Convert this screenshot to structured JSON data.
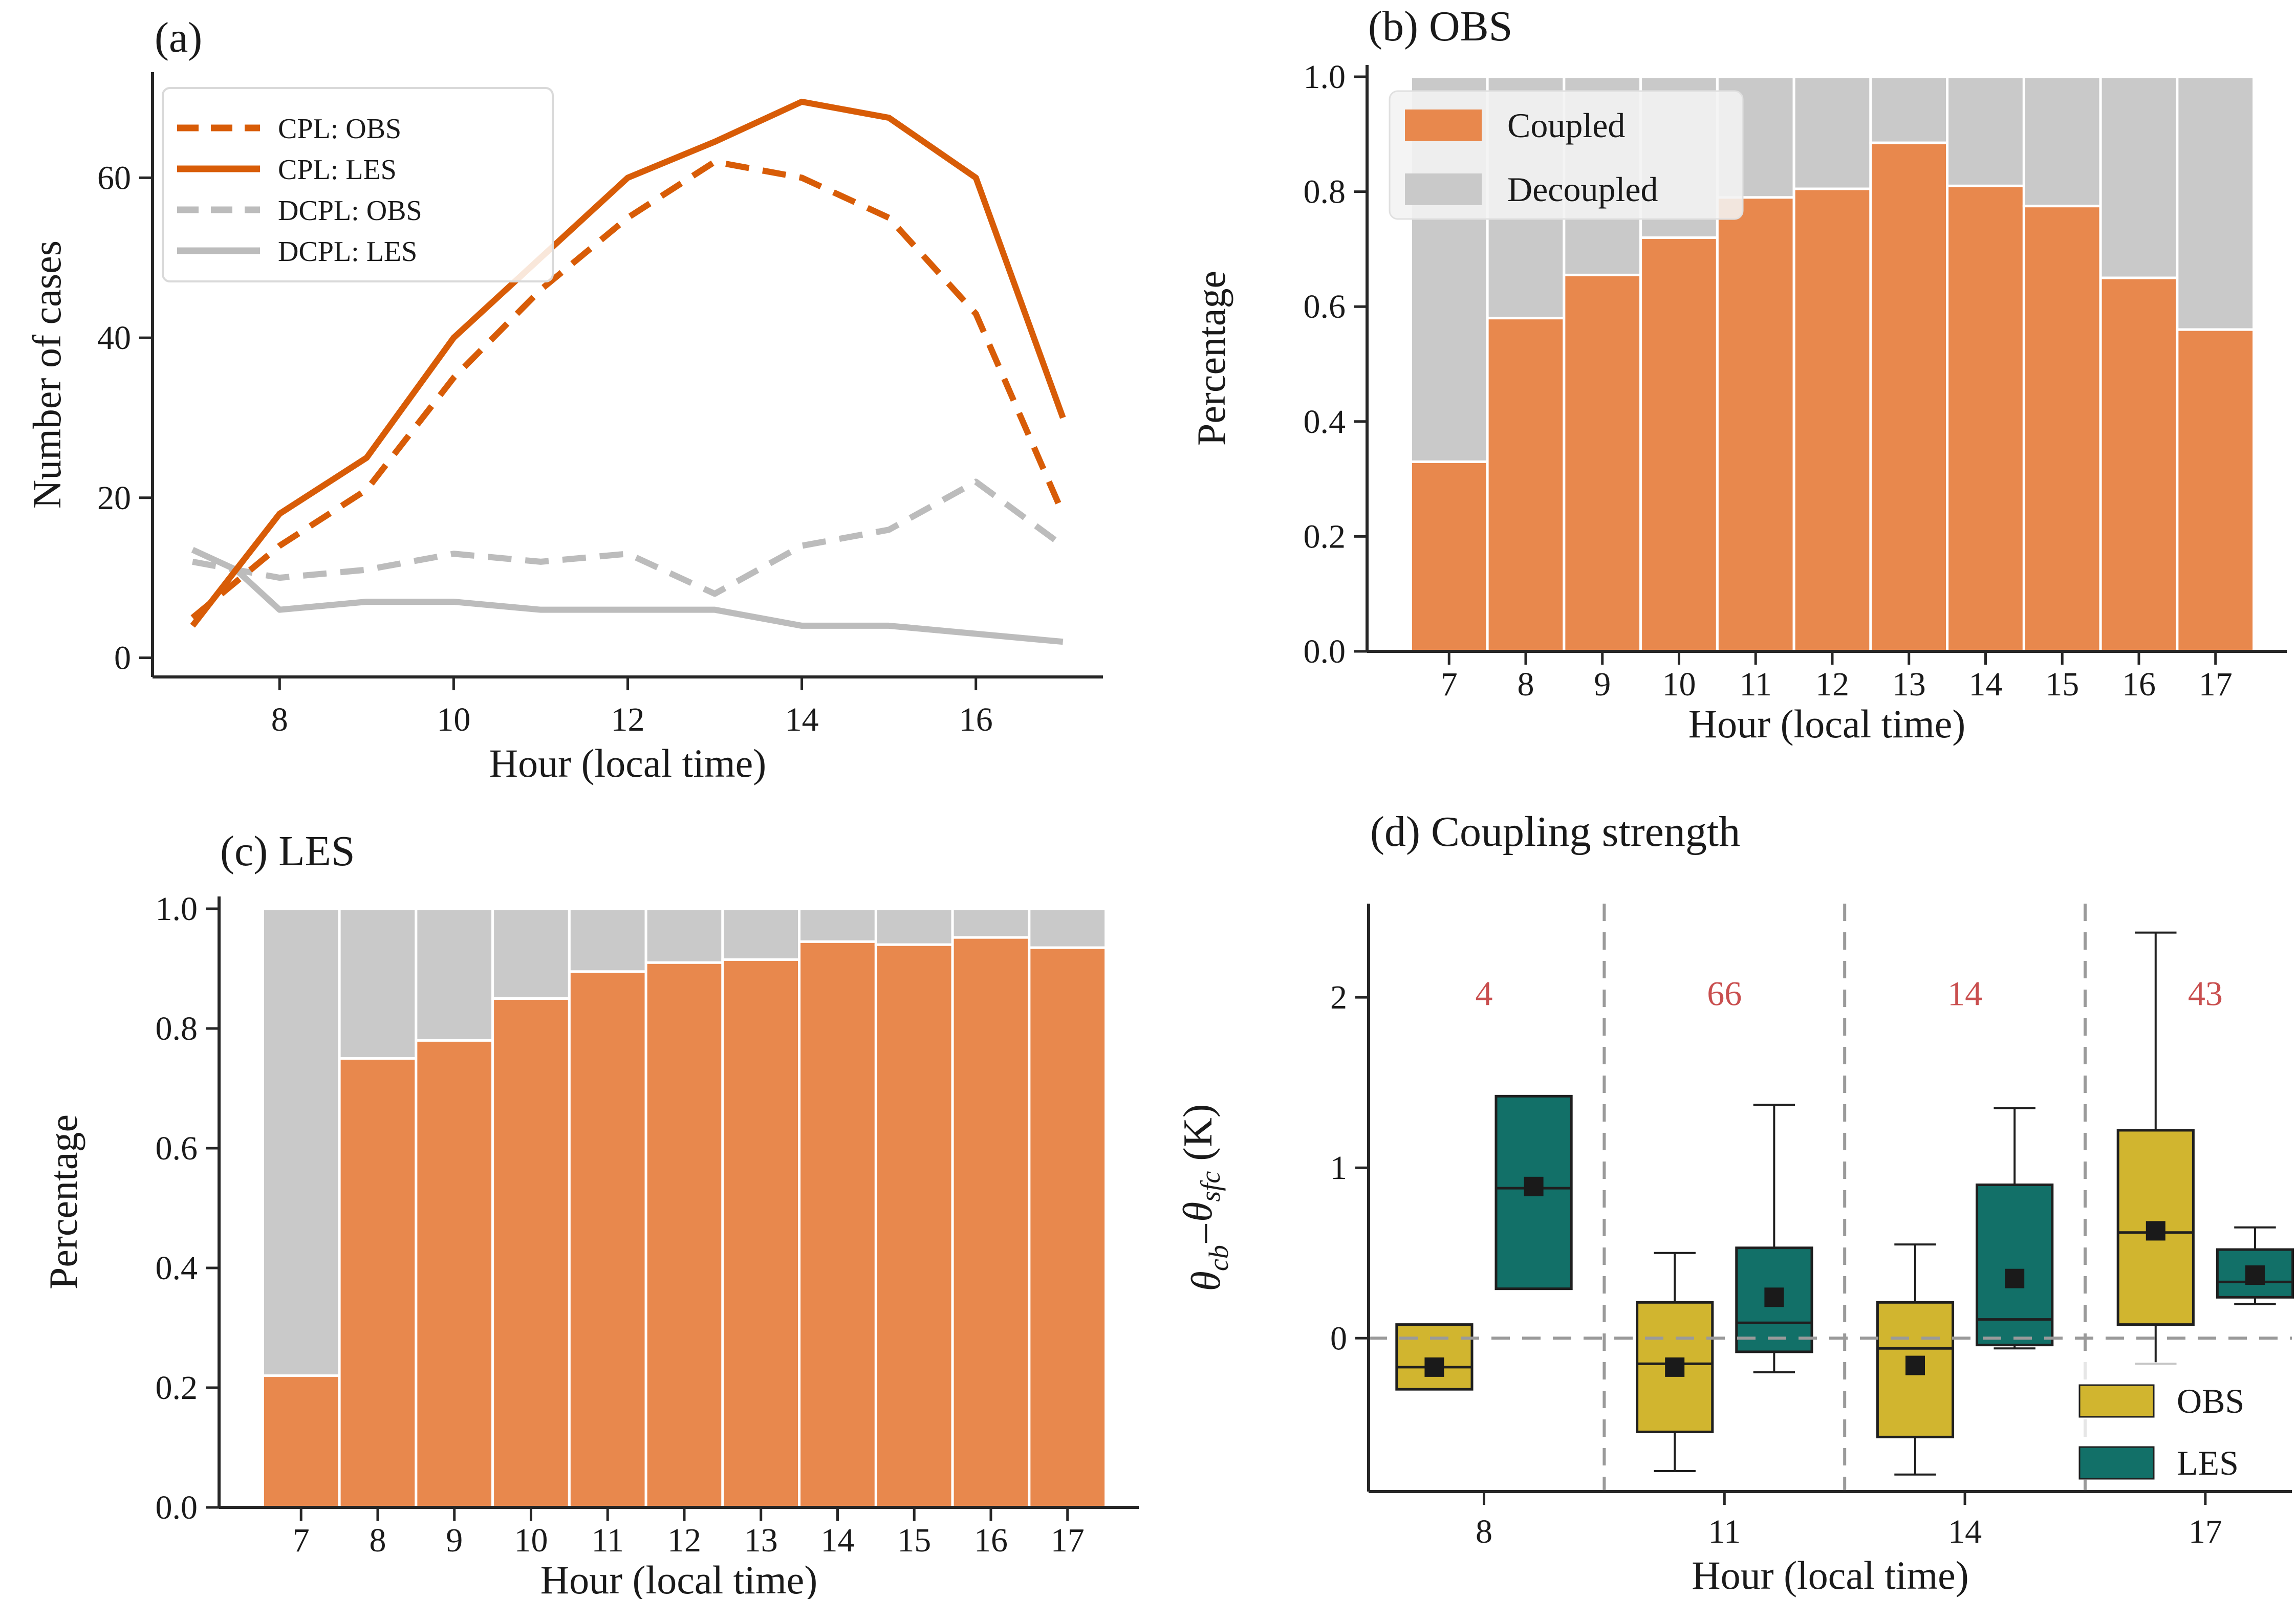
{
  "figure": {
    "background": "#ffffff",
    "text_color": "#1a1a1a",
    "spine_color": "#262626"
  },
  "chart_data": [
    {
      "id": "a",
      "type": "line",
      "title": "(a)",
      "xlabel": "Hour (local time)",
      "ylabel": "Number of cases",
      "x": [
        7,
        7.5,
        8,
        9,
        10,
        11,
        12,
        13,
        14,
        15,
        16,
        17
      ],
      "series": [
        {
          "name": "CPL: OBS",
          "color": "#d85c07",
          "style": "dashed",
          "values": [
            5,
            9.5,
            14,
            21,
            35,
            46,
            55,
            62,
            60,
            55,
            43,
            18
          ]
        },
        {
          "name": "CPL: LES",
          "color": "#d85c07",
          "style": "solid",
          "values": [
            4,
            11,
            18,
            25,
            40,
            50,
            60,
            64.5,
            69.5,
            67.5,
            60,
            30
          ]
        },
        {
          "name": "DCPL: OBS",
          "color": "#bcbcbc",
          "style": "dashed",
          "values": [
            12,
            11,
            10,
            11,
            13,
            12,
            13,
            8,
            14,
            16,
            22,
            14
          ]
        },
        {
          "name": "DCPL: LES",
          "color": "#bcbcbc",
          "style": "solid",
          "values": [
            13.5,
            11,
            6,
            7,
            7,
            6,
            6,
            6,
            4,
            4,
            3,
            2
          ]
        }
      ],
      "xticks": [
        8,
        10,
        12,
        14,
        16
      ],
      "yticks": [
        0,
        20,
        40,
        60
      ],
      "xlim": [
        6.54,
        17.46
      ],
      "ylim": [
        -2.4,
        73.2
      ],
      "legend_position": "upper left"
    },
    {
      "id": "b",
      "type": "stacked_bar",
      "title": "(b) OBS",
      "xlabel": "Hour (local time)",
      "ylabel": "Percentage",
      "categories": [
        7,
        8,
        9,
        10,
        11,
        12,
        13,
        14,
        15,
        16,
        17
      ],
      "coupled": [
        0.33,
        0.58,
        0.655,
        0.72,
        0.79,
        0.805,
        0.885,
        0.81,
        0.775,
        0.65,
        0.56
      ],
      "series_labels": [
        "Coupled",
        "Decoupled"
      ],
      "colors": {
        "coupled": "#e8884d",
        "decoupled": "#c9c9c9"
      },
      "xticks": [
        7,
        8,
        9,
        10,
        11,
        12,
        13,
        14,
        15,
        16,
        17
      ],
      "yticks": [
        0.0,
        0.2,
        0.4,
        0.6,
        0.8,
        1.0
      ],
      "xlim": [
        5.93,
        17.93
      ],
      "ylim": [
        0,
        1.0205
      ],
      "legend_position": "upper left"
    },
    {
      "id": "c",
      "type": "stacked_bar",
      "title": "(c) LES",
      "xlabel": "Hour (local time)",
      "ylabel": "Percentage",
      "categories": [
        7,
        8,
        9,
        10,
        11,
        12,
        13,
        14,
        15,
        16,
        17
      ],
      "coupled": [
        0.22,
        0.75,
        0.78,
        0.85,
        0.895,
        0.91,
        0.915,
        0.945,
        0.94,
        0.952,
        0.935
      ],
      "series_labels": [
        "Coupled",
        "Decoupled"
      ],
      "colors": {
        "coupled": "#e8884d",
        "decoupled": "#c9c9c9"
      },
      "xticks": [
        7,
        8,
        9,
        10,
        11,
        12,
        13,
        14,
        15,
        16,
        17
      ],
      "yticks": [
        0.0,
        0.2,
        0.4,
        0.6,
        0.8,
        1.0
      ],
      "xlim": [
        5.93,
        17.93
      ],
      "ylim": [
        0,
        1.0205
      ],
      "legend_position": "none"
    },
    {
      "id": "d",
      "type": "box",
      "title": "(d) Coupling strength",
      "xlabel": "Hour (local time)",
      "ylabel": "θcb−θsfc (K)",
      "ylabel_parts": [
        {
          "t": "θ",
          "kind": "main-italic"
        },
        {
          "t": "cb",
          "kind": "sub-italic"
        },
        {
          "t": "−",
          "kind": "main"
        },
        {
          "t": "θ",
          "kind": "main-italic"
        },
        {
          "t": "sfc",
          "kind": "sub-italic"
        },
        {
          "t": " (K)",
          "kind": "main"
        }
      ],
      "groups": [
        {
          "hour": 8,
          "count": 4,
          "obs": {
            "whislo": null,
            "q1": -0.3,
            "med": -0.17,
            "mean": -0.17,
            "q3": 0.08,
            "whishi": null
          },
          "les": {
            "whislo": null,
            "q1": 0.29,
            "med": 0.88,
            "mean": 0.89,
            "q3": 1.42,
            "whishi": null
          }
        },
        {
          "hour": 11,
          "count": 66,
          "obs": {
            "whislo": -0.78,
            "q1": -0.55,
            "med": -0.15,
            "mean": -0.17,
            "q3": 0.21,
            "whishi": 0.5
          },
          "les": {
            "whislo": -0.2,
            "q1": -0.08,
            "med": 0.09,
            "mean": 0.24,
            "q3": 0.53,
            "whishi": 1.37
          }
        },
        {
          "hour": 14,
          "count": 14,
          "obs": {
            "whislo": -0.8,
            "q1": -0.58,
            "med": -0.06,
            "mean": -0.16,
            "q3": 0.21,
            "whishi": 0.55
          },
          "les": {
            "whislo": -0.06,
            "q1": -0.04,
            "med": 0.11,
            "mean": 0.35,
            "q3": 0.9,
            "whishi": 1.35
          }
        },
        {
          "hour": 17,
          "count": 43,
          "obs": {
            "whislo": -0.15,
            "q1": 0.08,
            "med": 0.62,
            "mean": 0.63,
            "q3": 1.22,
            "whishi": 2.38
          },
          "les": {
            "whislo": 0.2,
            "q1": 0.24,
            "med": 0.33,
            "mean": 0.37,
            "q3": 0.52,
            "whishi": 0.65
          }
        }
      ],
      "legend": [
        "OBS",
        "LES"
      ],
      "colors": {
        "obs": "#d1b52f",
        "les": "#127068",
        "count": "#c94f4f",
        "guide": "#9a9a9a"
      },
      "xticks": [
        8,
        11,
        14,
        17
      ],
      "yticks": [
        0,
        1,
        2
      ],
      "separators": [
        9.5,
        12.5,
        15.5
      ],
      "zero_line": 0,
      "xlim": [
        6.56,
        18.08
      ],
      "ylim": [
        -0.9,
        2.55
      ],
      "legend_position": "lower right"
    }
  ]
}
